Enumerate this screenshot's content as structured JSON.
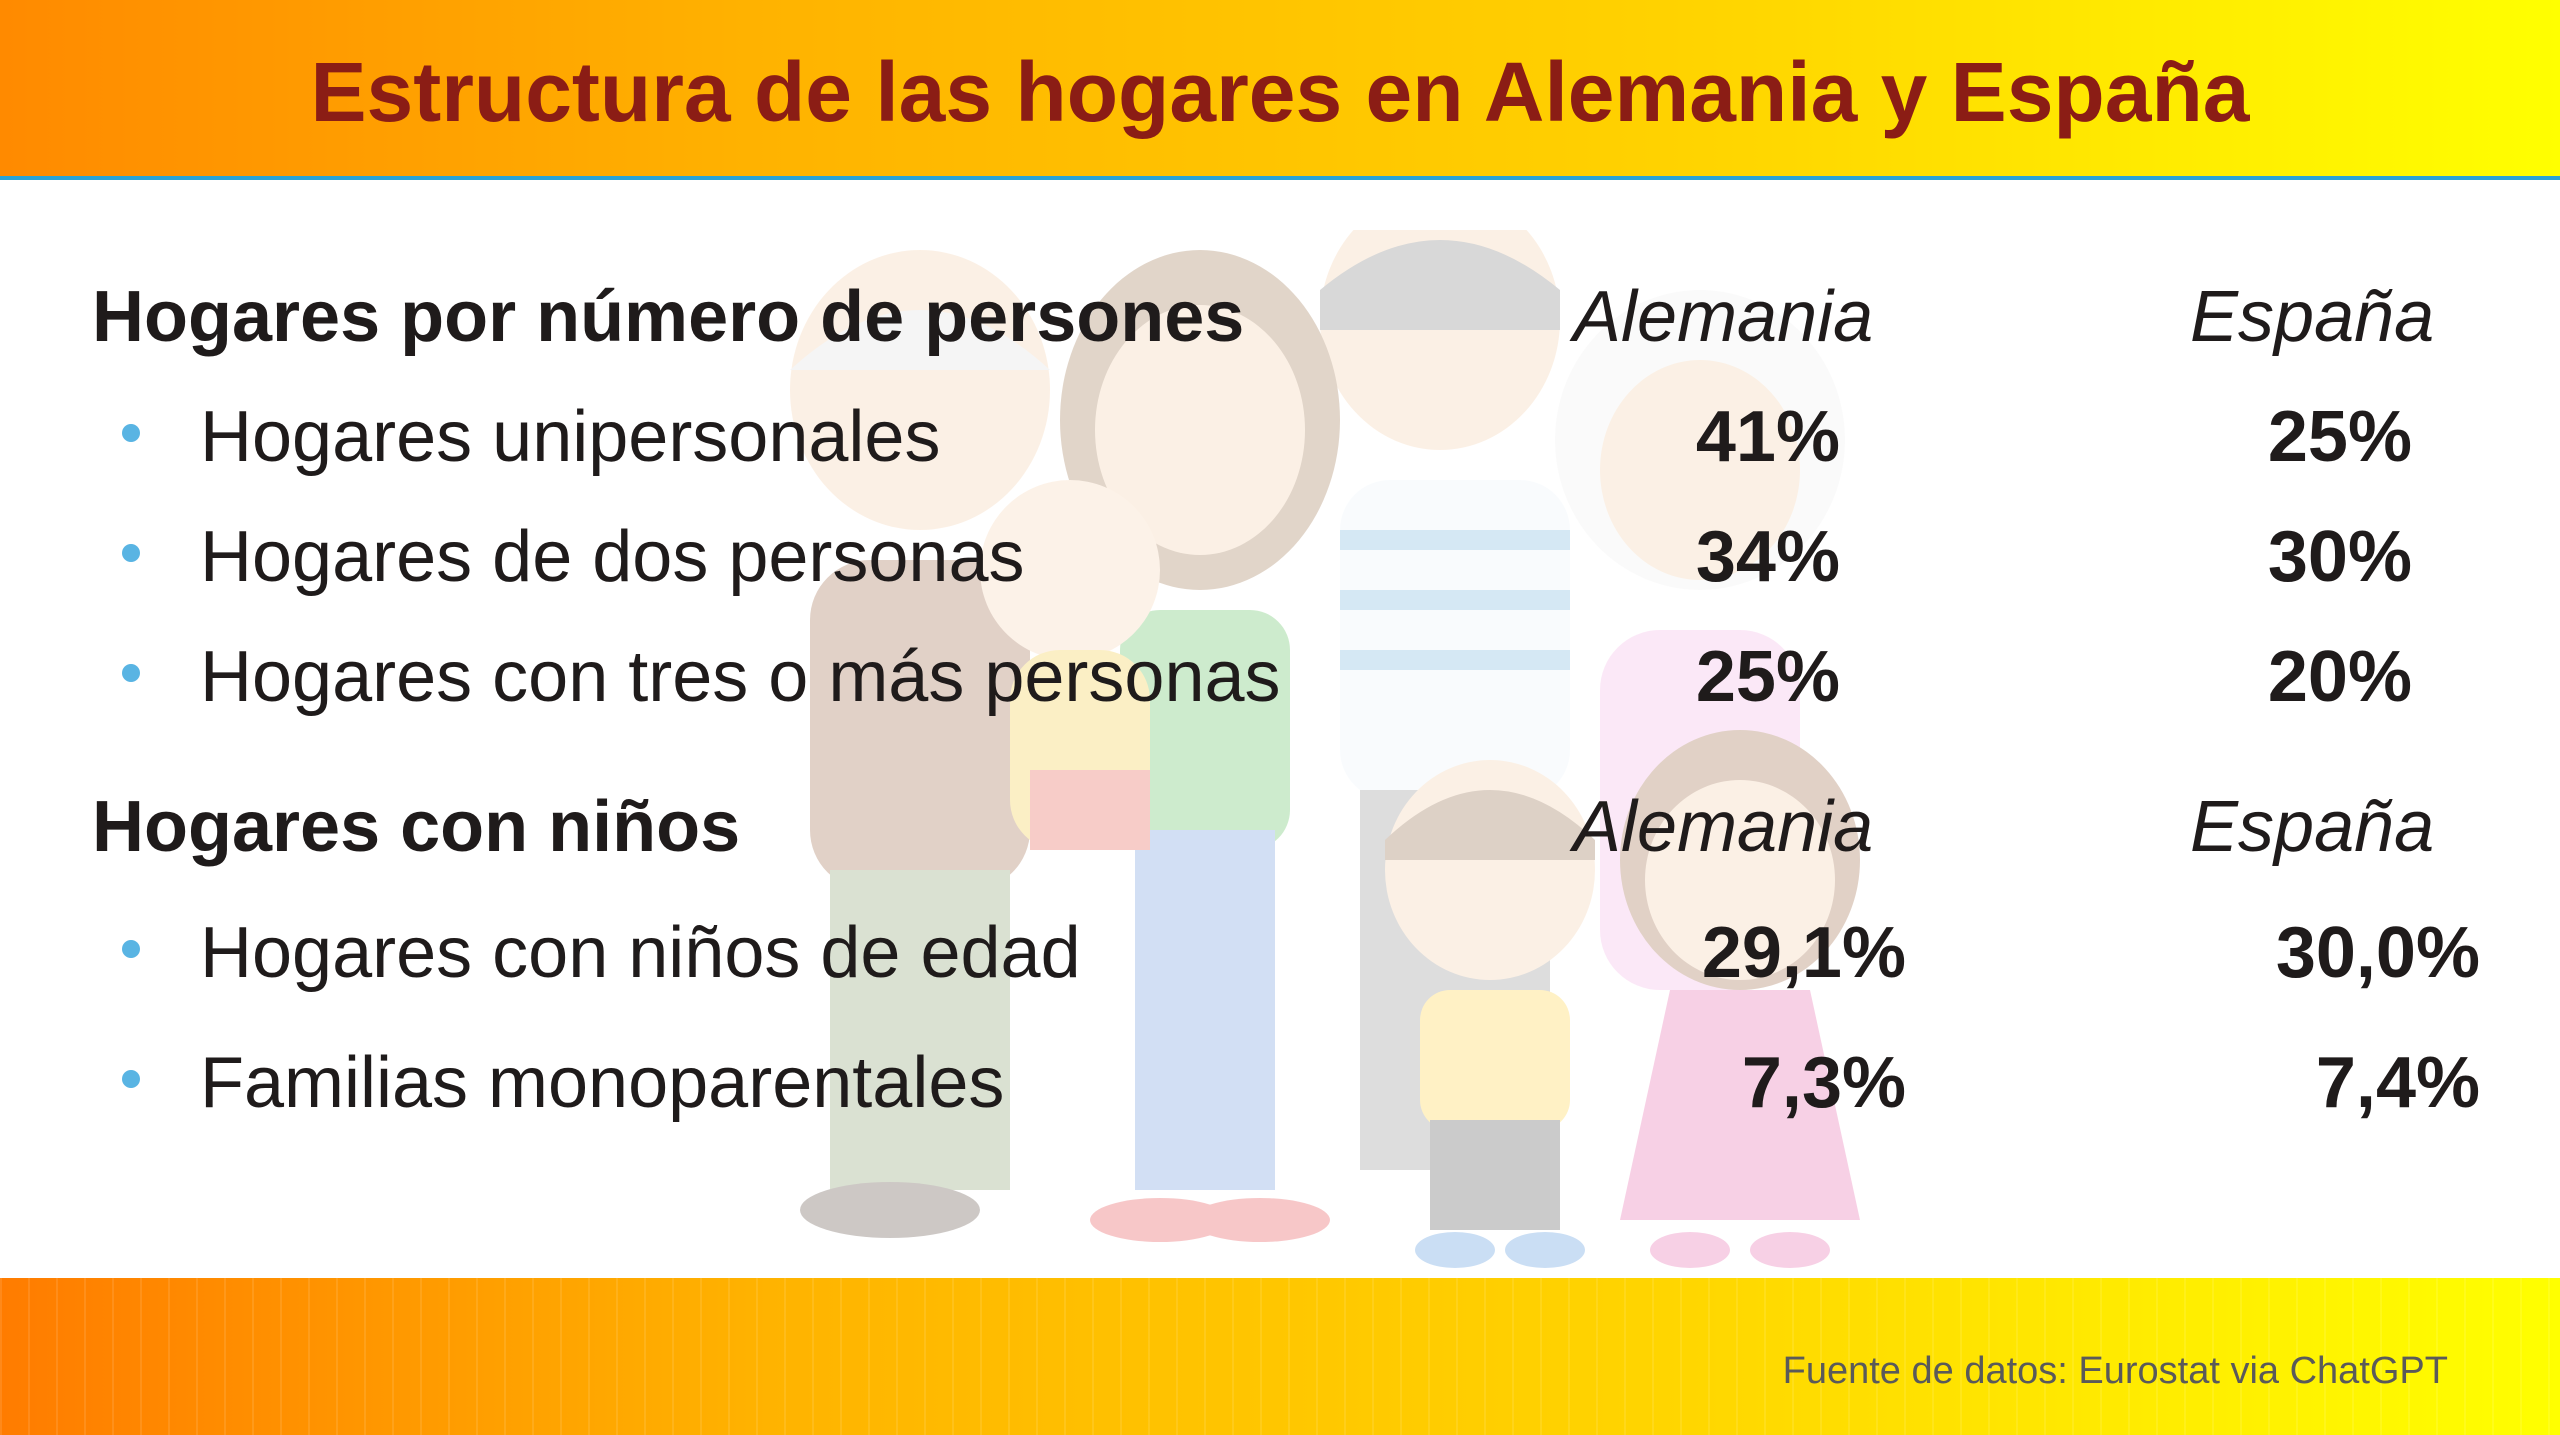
{
  "title": "Estructura de las hogares en Alemania y España",
  "section1": {
    "heading": "Hogares por número de persones",
    "col_de": "Alemania",
    "col_es": "España",
    "rows": [
      {
        "label": "Hogares unipersonales",
        "de": "41%",
        "es": "25%"
      },
      {
        "label": "Hogares de dos personas",
        "de": "34%",
        "es": "30%"
      },
      {
        "label": "Hogares con tres o más personas",
        "de": "25%",
        "es": "20%"
      }
    ]
  },
  "section2": {
    "heading": "Hogares con niños",
    "col_de": "Alemania",
    "col_es": "España",
    "rows": [
      {
        "label": "Hogares con niños de edad",
        "de": "29,1%",
        "es": "30,0%"
      },
      {
        "label": "Familias monoparentales",
        "de": "7,3%",
        "es": "7,4%"
      }
    ]
  },
  "footer": {
    "source": "Fuente de datos: Eurostat via ChatGPT"
  },
  "colors": {
    "title": "#8b1d15",
    "bullet": "#59b4e3",
    "header_gradient_start": "#ff8a00",
    "header_gradient_end": "#ffff00",
    "divider": "#2aa3d6"
  },
  "background_illustration": "family-cartoon-illustration"
}
